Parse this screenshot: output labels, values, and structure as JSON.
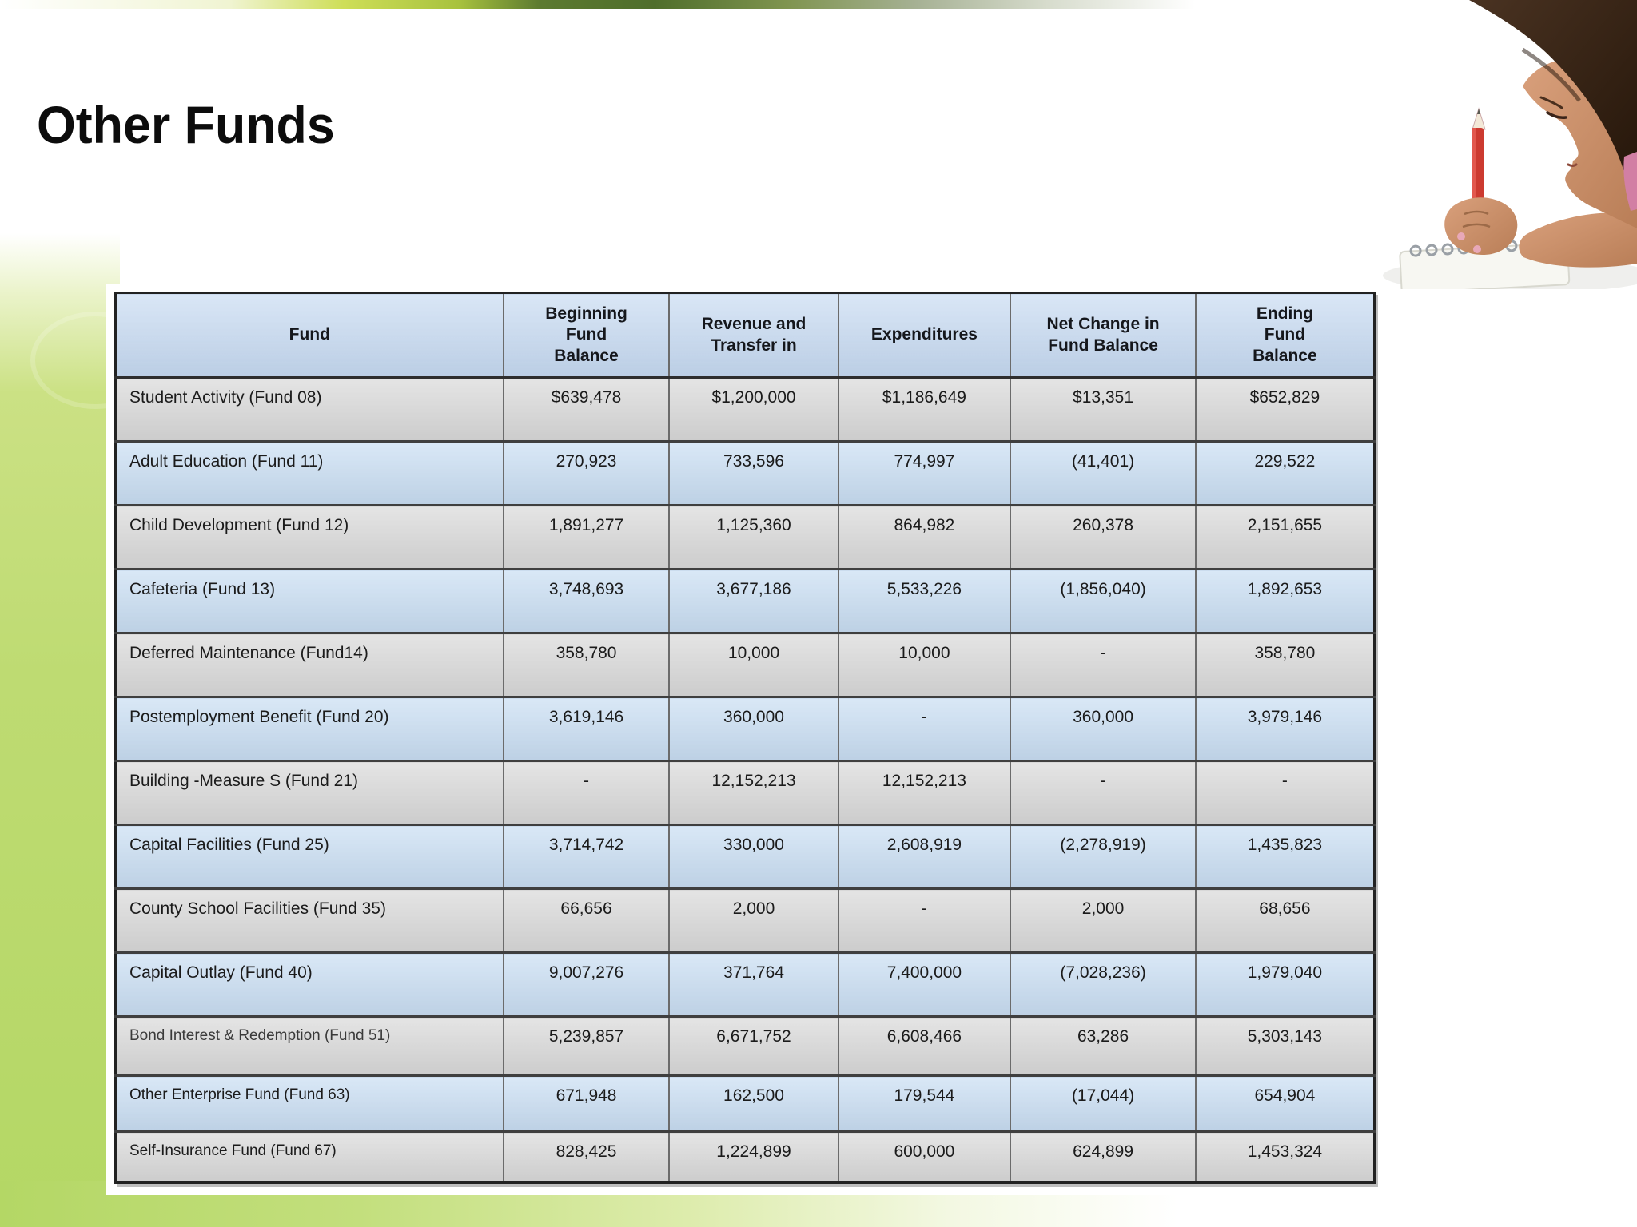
{
  "slide": {
    "title": "Other Funds"
  },
  "images": {
    "top_right": "child-writing-with-red-pencil-photo"
  },
  "table": {
    "headers": [
      "Fund",
      "Beginning Fund Balance",
      "Revenue and Transfer in",
      "Expenditures",
      "Net Change in Fund Balance",
      "Ending Fund Balance"
    ],
    "rows": [
      {
        "fund": "Student Activity (Fund 08)",
        "values": [
          "$639,478",
          "$1,200,000",
          "$1,186,649",
          "$13,351",
          "$652,829"
        ]
      },
      {
        "fund": "Adult Education (Fund 11)",
        "values": [
          "270,923",
          "733,596",
          "774,997",
          "(41,401)",
          "229,522"
        ]
      },
      {
        "fund": "Child Development (Fund 12)",
        "values": [
          "1,891,277",
          "1,125,360",
          "864,982",
          "260,378",
          "2,151,655"
        ]
      },
      {
        "fund": "Cafeteria (Fund 13)",
        "values": [
          "3,748,693",
          "3,677,186",
          "5,533,226",
          "(1,856,040)",
          "1,892,653"
        ]
      },
      {
        "fund": "Deferred Maintenance (Fund14)",
        "values": [
          "358,780",
          "10,000",
          "10,000",
          "-",
          "358,780"
        ]
      },
      {
        "fund": "Postemployment Benefit (Fund 20)",
        "values": [
          "3,619,146",
          "360,000",
          "-",
          "360,000",
          "3,979,146"
        ]
      },
      {
        "fund": "Building -Measure S (Fund 21)",
        "values": [
          "-",
          "12,152,213",
          "12,152,213",
          "-",
          "-"
        ]
      },
      {
        "fund": "Capital Facilities (Fund 25)",
        "values": [
          "3,714,742",
          "330,000",
          "2,608,919",
          "(2,278,919)",
          "1,435,823"
        ]
      },
      {
        "fund": "County School Facilities (Fund 35)",
        "values": [
          "66,656",
          "2,000",
          "-",
          "2,000",
          "68,656"
        ]
      },
      {
        "fund": "Capital Outlay (Fund 40)",
        "values": [
          "9,007,276",
          "371,764",
          "7,400,000",
          "(7,028,236)",
          "1,979,040"
        ]
      },
      {
        "fund": "Bond Interest & Redemption (Fund 51)",
        "values": [
          "5,239,857",
          "6,671,752",
          "6,608,466",
          "63,286",
          "5,303,143"
        ]
      },
      {
        "fund": "Other Enterprise Fund (Fund 63)",
        "values": [
          "671,948",
          "162,500",
          "179,544",
          "(17,044)",
          "654,904"
        ]
      },
      {
        "fund": "Self-Insurance Fund (Fund 67)",
        "values": [
          "828,425",
          "1,224,899",
          "600,000",
          "624,899",
          "1,453,324"
        ]
      }
    ]
  },
  "colors": {
    "header_bg": "#c5d9f1",
    "row_blue": "#c9def3",
    "row_gray": "#d9d9d9",
    "accent_green": "#bedb72",
    "pencil_red": "#cc3a30"
  }
}
